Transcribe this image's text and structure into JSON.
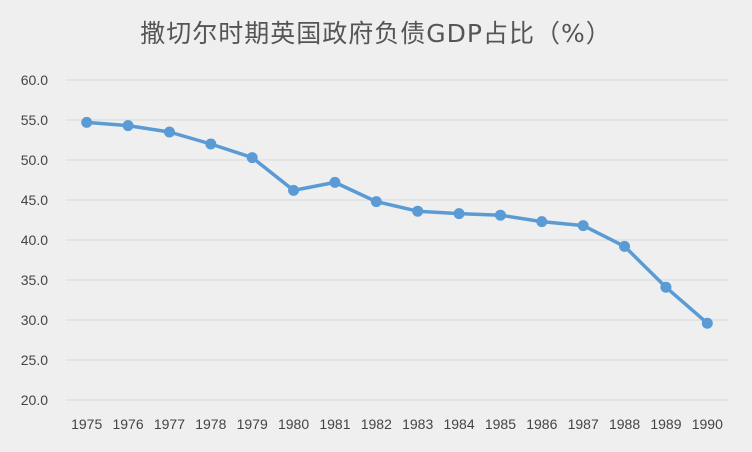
{
  "colors": {
    "background": "#efefef",
    "grid": "#d9d9d9",
    "series": "#5b9bd5",
    "text": "#444444",
    "title": "#555555"
  },
  "chart_data": {
    "type": "line",
    "title": "撒切尔时期英国政府负债GDP占比（%）",
    "xlabel": "",
    "ylabel": "",
    "grid": true,
    "ylim": [
      20,
      60
    ],
    "yticks": [
      "20.0",
      "25.0",
      "30.0",
      "35.0",
      "40.0",
      "45.0",
      "50.0",
      "55.0",
      "60.0"
    ],
    "x": [
      "1975",
      "1976",
      "1977",
      "1978",
      "1979",
      "1980",
      "1981",
      "1982",
      "1983",
      "1984",
      "1985",
      "1986",
      "1987",
      "1988",
      "1989",
      "1990"
    ],
    "series": [
      {
        "values": [
          54.7,
          54.3,
          53.5,
          52.0,
          50.3,
          46.2,
          47.2,
          44.8,
          43.6,
          43.3,
          43.1,
          42.3,
          41.8,
          39.2,
          34.1,
          29.6
        ]
      }
    ]
  }
}
